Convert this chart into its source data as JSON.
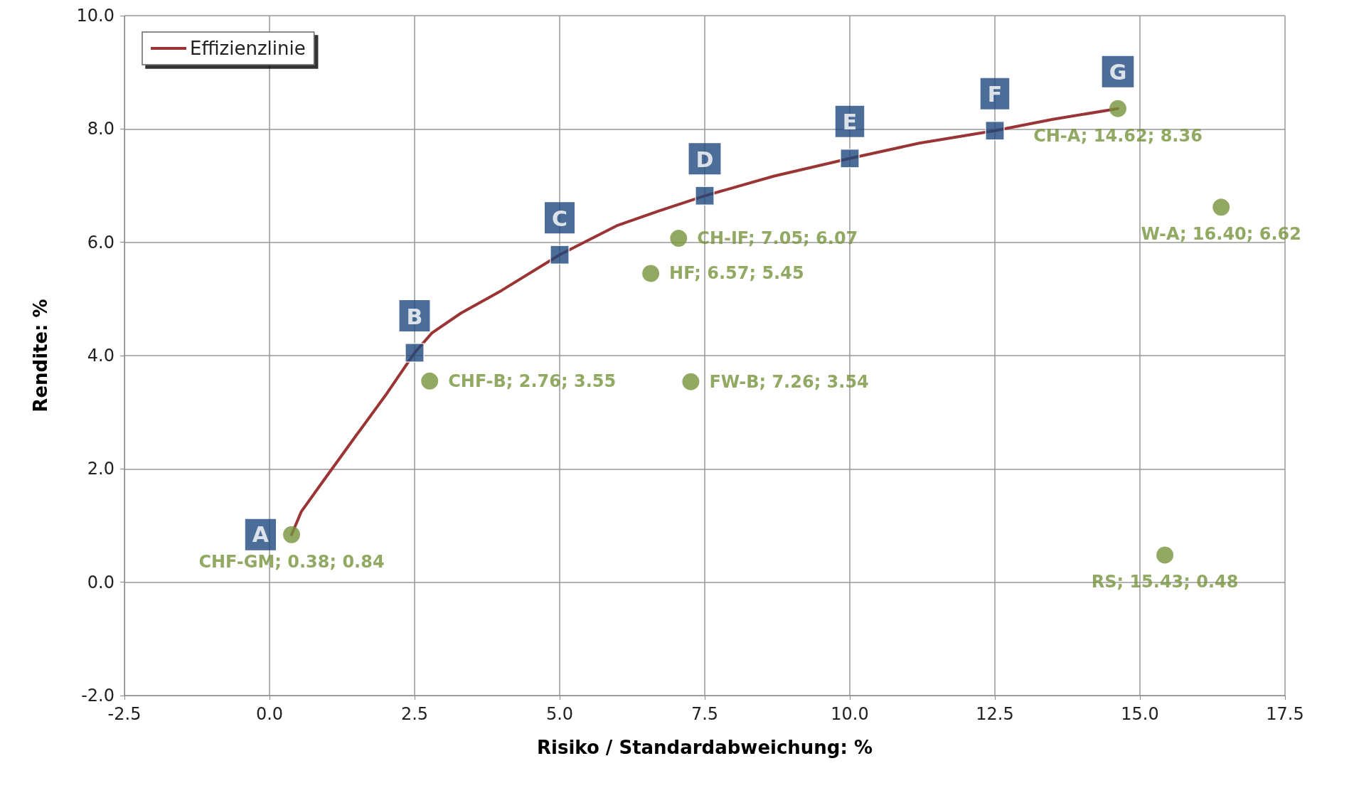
{
  "chart_data": {
    "type": "scatter",
    "xlabel": "Risiko / Standardabweichung: %",
    "ylabel": "Rendite: %",
    "xlim": [
      -2.5,
      17.5
    ],
    "ylim": [
      -2,
      10
    ],
    "xticks": [
      {
        "value": -2.5,
        "label": "-2.5"
      },
      {
        "value": 0,
        "label": "0.0"
      },
      {
        "value": 2.5,
        "label": "2.5"
      },
      {
        "value": 5,
        "label": "5.0"
      },
      {
        "value": 7.5,
        "label": "7.5"
      },
      {
        "value": 10,
        "label": "10.0"
      },
      {
        "value": 12.5,
        "label": "12.5"
      },
      {
        "value": 15,
        "label": "15.0"
      },
      {
        "value": 17.5,
        "label": "17.5"
      }
    ],
    "yticks": [
      {
        "value": -2,
        "label": "-2.0"
      },
      {
        "value": 0,
        "label": "0.0"
      },
      {
        "value": 2,
        "label": "2.0"
      },
      {
        "value": 4,
        "label": "4.0"
      },
      {
        "value": 6,
        "label": "6.0"
      },
      {
        "value": 8,
        "label": "8.0"
      },
      {
        "value": 10,
        "label": "10.0"
      }
    ],
    "grid": true,
    "legend": "top left",
    "series": [
      {
        "name": "Effizienzlinie",
        "type": "line",
        "color": "#9b3434",
        "marker": "none",
        "line_style": "solid",
        "x": [
          0.38,
          0.55,
          0.9,
          1.5,
          2.0,
          2.5,
          2.8,
          3.3,
          4.0,
          5.0,
          6.0,
          6.7,
          7.5,
          8.7,
          10.0,
          11.2,
          12.5,
          13.5,
          14.62
        ],
        "values": [
          0.84,
          1.25,
          1.75,
          2.6,
          3.3,
          4.05,
          4.4,
          4.75,
          5.15,
          5.78,
          6.3,
          6.55,
          6.82,
          7.17,
          7.48,
          7.75,
          7.97,
          8.17,
          8.36
        ]
      },
      {
        "color": "#77933c",
        "marker": "circle",
        "x": [
          0.38,
          2.76,
          7.05,
          6.57,
          7.26,
          14.62,
          16.4,
          15.43
        ],
        "values": [
          0.84,
          3.55,
          6.07,
          5.45,
          3.54,
          8.36,
          6.62,
          0.48
        ],
        "value_labels": [
          "CHF-GM; 0.38; 0.84",
          "CHF-B; 2.76; 3.55",
          "CH-IF; 7.05; 6.07",
          "HF; 6.57; 5.45",
          "FW-B; 7.26; 3.54",
          "CH-A; 14.62; 8.36",
          "W-A; 16.40; 6.62",
          "RS; 15.43; 0.48"
        ]
      },
      {
        "color": "#1f497d",
        "marker": "square",
        "x": [
          2.5,
          5.0,
          7.5,
          10.0,
          12.5
        ],
        "values": [
          4.05,
          5.78,
          6.82,
          7.48,
          7.97
        ]
      }
    ],
    "annotations": [
      {
        "text": "A",
        "x": 0.38,
        "y": 0.84
      },
      {
        "text": "B",
        "x": 2.5,
        "y": 4.05
      },
      {
        "text": "C",
        "x": 5.0,
        "y": 5.78
      },
      {
        "text": "D",
        "x": 7.5,
        "y": 6.82
      },
      {
        "text": "E",
        "x": 10.0,
        "y": 7.48
      },
      {
        "text": "F",
        "x": 12.5,
        "y": 7.97
      },
      {
        "text": "G",
        "x": 14.62,
        "y": 8.36
      }
    ]
  }
}
